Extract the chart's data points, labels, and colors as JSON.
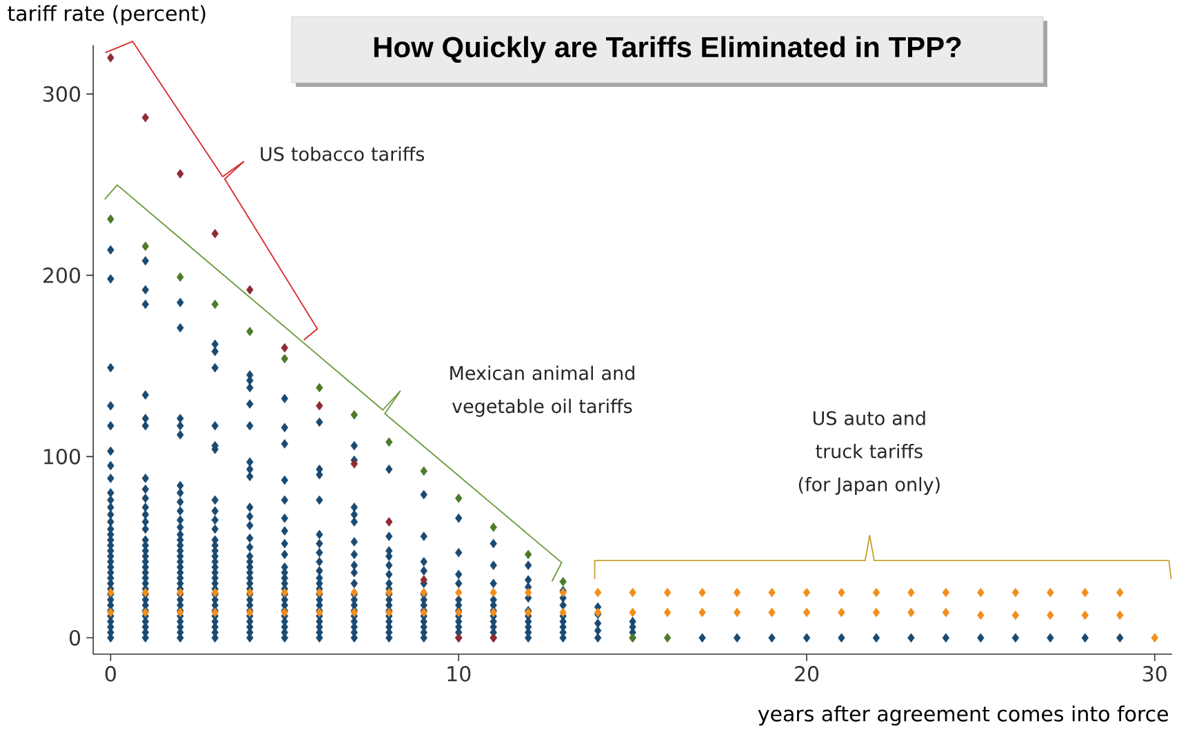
{
  "chart_data": {
    "type": "scatter",
    "title": "How Quickly are Tariffs Eliminated in TPP?",
    "xlabel": "years after agreement comes into force",
    "ylabel": "tariff rate (percent)",
    "annotations": [
      "US tobacco tariffs",
      "Mexican animal  and vegetable oil tariffs",
      "US auto and truck tariffs (for Japan only)"
    ],
    "xlim": [
      -0.5,
      30.5
    ],
    "ylim": [
      -9,
      327
    ],
    "xticks": [
      0,
      10,
      20,
      30
    ],
    "yticks": [
      0,
      100,
      200,
      300
    ],
    "marker": "diamond",
    "series": [
      {
        "color": "#1a4a72",
        "x": [
          0,
          0,
          0,
          0,
          0,
          0,
          0,
          0,
          0,
          0,
          0,
          0,
          0,
          0,
          0,
          0,
          0,
          0,
          0,
          0,
          0,
          0,
          0,
          0,
          0,
          0,
          0,
          0,
          0,
          0,
          0,
          0,
          0,
          0,
          1,
          1,
          1,
          1,
          1,
          1,
          1,
          1,
          1,
          1,
          1,
          1,
          1,
          1,
          1,
          1,
          1,
          1,
          1,
          1,
          1,
          1,
          1,
          1,
          1,
          1,
          1,
          1,
          1,
          1,
          1,
          1,
          2,
          2,
          2,
          2,
          2,
          2,
          2,
          2,
          2,
          2,
          2,
          2,
          2,
          2,
          2,
          2,
          2,
          2,
          2,
          2,
          2,
          2,
          2,
          2,
          2,
          2,
          2,
          2,
          2,
          2,
          2,
          3,
          3,
          3,
          3,
          3,
          3,
          3,
          3,
          3,
          3,
          3,
          3,
          3,
          3,
          3,
          3,
          3,
          3,
          3,
          3,
          3,
          3,
          3,
          3,
          3,
          3,
          3,
          3,
          3,
          4,
          4,
          4,
          4,
          4,
          4,
          4,
          4,
          4,
          4,
          4,
          4,
          4,
          4,
          4,
          4,
          4,
          4,
          4,
          4,
          4,
          4,
          4,
          4,
          4,
          4,
          4,
          4,
          4,
          5,
          5,
          5,
          5,
          5,
          5,
          5,
          5,
          5,
          5,
          5,
          5,
          5,
          5,
          5,
          5,
          5,
          5,
          5,
          5,
          5,
          5,
          5,
          6,
          6,
          6,
          6,
          6,
          6,
          6,
          6,
          6,
          6,
          6,
          6,
          6,
          6,
          6,
          6,
          6,
          6,
          6,
          6,
          6,
          7,
          7,
          7,
          7,
          7,
          7,
          7,
          7,
          7,
          7,
          7,
          7,
          7,
          7,
          7,
          7,
          7,
          7,
          7,
          8,
          8,
          8,
          8,
          8,
          8,
          8,
          8,
          8,
          8,
          8,
          8,
          8,
          8,
          8,
          8,
          8,
          9,
          9,
          9,
          9,
          9,
          9,
          9,
          9,
          9,
          9,
          9,
          9,
          9,
          9,
          10,
          10,
          10,
          10,
          10,
          10,
          10,
          10,
          10,
          10,
          10,
          10,
          11,
          11,
          11,
          11,
          11,
          11,
          11,
          11,
          11,
          11,
          11,
          12,
          12,
          12,
          12,
          12,
          12,
          12,
          12,
          12,
          12,
          13,
          13,
          13,
          13,
          13,
          13,
          13,
          13,
          14,
          14,
          14,
          14,
          14,
          15,
          15,
          15,
          15,
          17,
          18,
          19,
          20,
          21,
          22,
          23,
          24,
          25,
          26,
          27,
          28,
          29
        ],
        "values": [
          0,
          3,
          6,
          9,
          12,
          15,
          18,
          21,
          24,
          27,
          30,
          33,
          36,
          39,
          42,
          45,
          48,
          51,
          54,
          57,
          60,
          64,
          68,
          72,
          76,
          80,
          88,
          95,
          103,
          117,
          128,
          149,
          198,
          214,
          0,
          3,
          6,
          9,
          12,
          15,
          18,
          21,
          24,
          27,
          30,
          33,
          36,
          39,
          42,
          45,
          48,
          51,
          54,
          60,
          64,
          68,
          72,
          77,
          82,
          88,
          117,
          121,
          134,
          184,
          192,
          208,
          0,
          3,
          6,
          9,
          12,
          15,
          18,
          21,
          24,
          27,
          30,
          33,
          36,
          39,
          42,
          45,
          48,
          51,
          54,
          57,
          61,
          65,
          70,
          75,
          80,
          84,
          112,
          117,
          121,
          171,
          185,
          0,
          3,
          6,
          9,
          12,
          15,
          18,
          21,
          24,
          27,
          30,
          33,
          36,
          39,
          42,
          45,
          48,
          51,
          54,
          60,
          65,
          70,
          76,
          104,
          106,
          117,
          149,
          158,
          162,
          0,
          3,
          6,
          9,
          12,
          15,
          18,
          21,
          24,
          27,
          30,
          33,
          36,
          39,
          42,
          45,
          50,
          55,
          62,
          67,
          72,
          89,
          93,
          97,
          117,
          129,
          138,
          142,
          145,
          0,
          3,
          6,
          9,
          12,
          15,
          18,
          21,
          24,
          27,
          30,
          33,
          36,
          39,
          46,
          52,
          59,
          66,
          76,
          87,
          107,
          116,
          132,
          0,
          3,
          6,
          9,
          12,
          15,
          18,
          21,
          24,
          27,
          30,
          33,
          37,
          42,
          47,
          52,
          57,
          76,
          90,
          93,
          119,
          0,
          3,
          6,
          9,
          12,
          15,
          18,
          21,
          24,
          30,
          36,
          40,
          46,
          53,
          64,
          68,
          72,
          98,
          106,
          0,
          3,
          6,
          9,
          12,
          15,
          18,
          21,
          24,
          27,
          30,
          35,
          40,
          45,
          48,
          56,
          93,
          0,
          3,
          6,
          9,
          12,
          15,
          18,
          21,
          24,
          30,
          37,
          42,
          56,
          79,
          0,
          3,
          6,
          9,
          12,
          15,
          18,
          21,
          30,
          35,
          47,
          66,
          0,
          3,
          6,
          9,
          12,
          15,
          18,
          21,
          30,
          40,
          52,
          0,
          3,
          6,
          9,
          12,
          15,
          22,
          28,
          32,
          40,
          0,
          3,
          6,
          9,
          12,
          18,
          22,
          26,
          0,
          4,
          8,
          13,
          17,
          0,
          3,
          6,
          9,
          0,
          0,
          0,
          0,
          0,
          0,
          0,
          0,
          0,
          0,
          0,
          0,
          0
        ]
      },
      {
        "color": "#f28e1c",
        "x": [
          0,
          0,
          1,
          1,
          2,
          2,
          3,
          3,
          4,
          4,
          5,
          5,
          6,
          6,
          7,
          7,
          8,
          8,
          9,
          9,
          10,
          10,
          11,
          11,
          12,
          12,
          13,
          13,
          14,
          14,
          15,
          15,
          16,
          16,
          17,
          17,
          18,
          18,
          19,
          19,
          20,
          20,
          21,
          21,
          22,
          22,
          23,
          23,
          24,
          24,
          25,
          25,
          26,
          26,
          27,
          27,
          28,
          28,
          29,
          29,
          30
        ],
        "values": [
          25,
          14,
          25,
          14,
          25,
          14,
          25,
          14,
          25,
          14,
          25,
          14,
          25,
          14,
          25,
          14,
          25,
          14,
          25,
          14,
          25,
          14,
          25,
          14,
          25,
          14,
          25,
          14,
          25,
          14,
          25,
          14,
          25,
          14,
          25,
          14,
          25,
          14,
          25,
          14,
          25,
          14,
          25,
          14,
          25,
          14,
          25,
          14,
          25,
          14,
          25,
          12.5,
          25,
          12.5,
          25,
          12.5,
          25,
          12.5,
          25,
          12.5,
          0
        ]
      },
      {
        "color": "#8e2b34",
        "x": [
          0,
          1,
          2,
          3,
          4,
          5,
          6,
          7,
          8,
          9,
          10,
          11
        ],
        "values": [
          320,
          287,
          256,
          223,
          192,
          160,
          128,
          96,
          64,
          32,
          0,
          0
        ]
      },
      {
        "color": "#4e7a2a",
        "x": [
          0,
          1,
          2,
          3,
          4,
          5,
          6,
          7,
          8,
          9,
          10,
          11,
          12,
          13,
          15,
          16
        ],
        "values": [
          231,
          216,
          199,
          184,
          169,
          154,
          138,
          123,
          108,
          92,
          77,
          61,
          46,
          31,
          0,
          0
        ]
      }
    ]
  }
}
